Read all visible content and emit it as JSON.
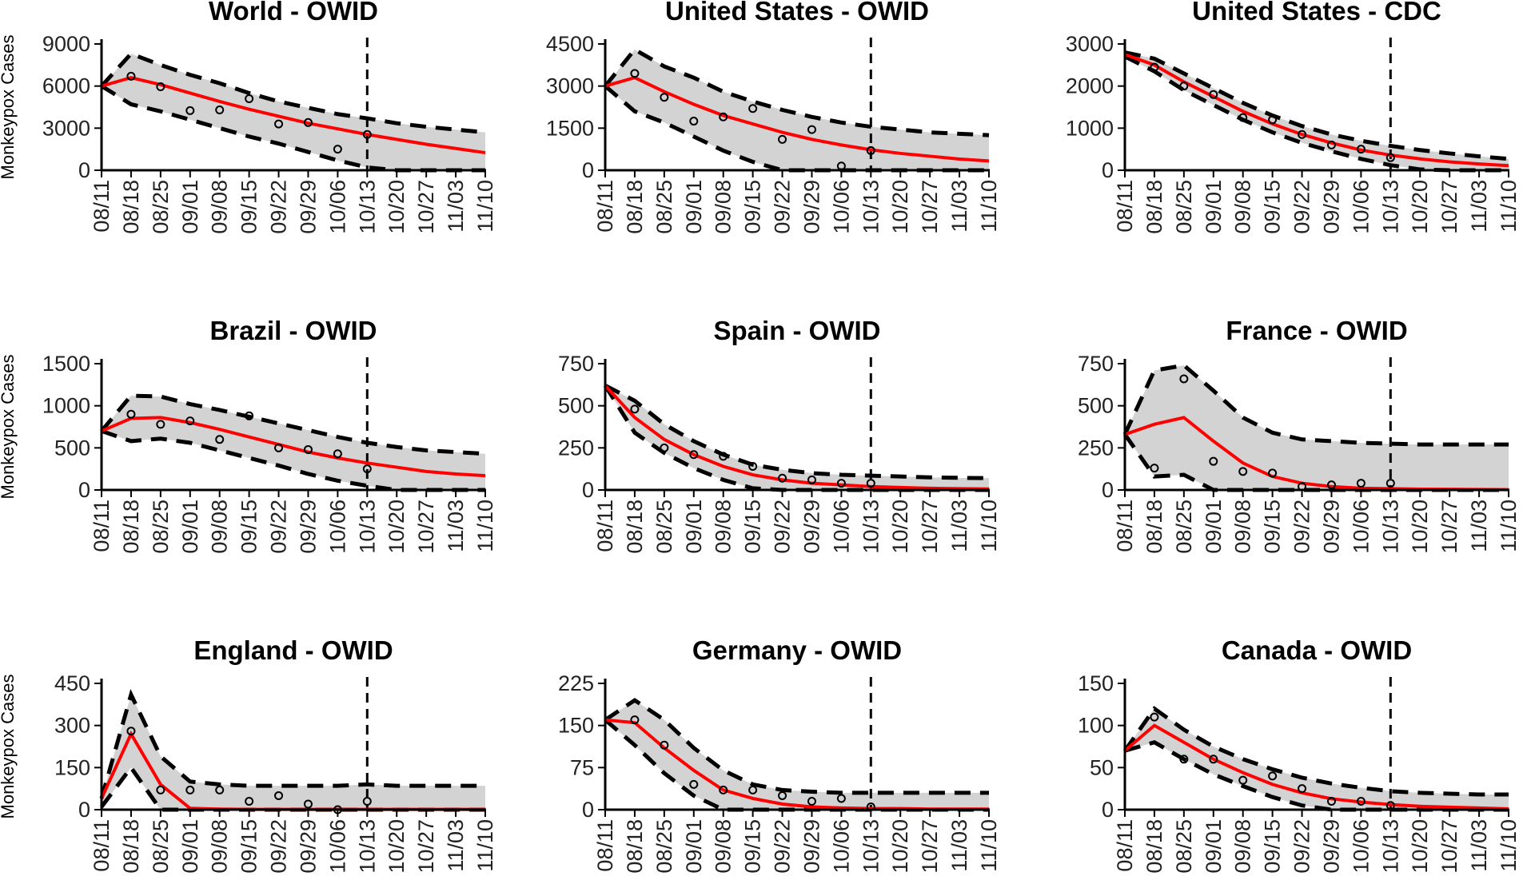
{
  "colors": {
    "band": "#d3d3d3",
    "mean": "#ff0000",
    "bounds": "#000000",
    "marker": "#000000",
    "axis": "#000000"
  },
  "chart_data": [
    {
      "type": "line",
      "title": "World - OWID",
      "xlabel": "",
      "ylabel": "Monkeypox Cases",
      "categories": [
        "08/11",
        "08/18",
        "08/25",
        "09/01",
        "09/08",
        "09/15",
        "09/22",
        "09/29",
        "10/06",
        "10/13",
        "10/20",
        "10/27",
        "11/03",
        "11/10"
      ],
      "x": [
        0,
        1,
        2,
        3,
        4,
        5,
        6,
        7,
        8,
        9,
        10,
        11,
        12,
        13
      ],
      "ylim": [
        0,
        9000
      ],
      "yticks": [
        0,
        3000,
        6000,
        9000
      ],
      "forecast_start": "10/13",
      "series": [
        {
          "name": "model mean",
          "values": [
            6000,
            6600,
            6100,
            5500,
            4900,
            4350,
            3850,
            3350,
            2950,
            2550,
            2200,
            1850,
            1550,
            1250
          ]
        },
        {
          "name": "upper bound",
          "values": [
            6000,
            8300,
            7500,
            6800,
            6200,
            5500,
            4900,
            4450,
            4000,
            3700,
            3350,
            3100,
            2900,
            2700
          ]
        },
        {
          "name": "lower bound",
          "values": [
            6000,
            4700,
            4200,
            3600,
            3000,
            2400,
            1900,
            1300,
            700,
            200,
            0,
            0,
            0,
            0
          ]
        },
        {
          "name": "observed",
          "x": [
            1,
            2,
            3,
            4,
            5,
            6,
            7,
            8,
            9
          ],
          "values": [
            6700,
            5950,
            4250,
            4300,
            5100,
            3300,
            3400,
            1500,
            2550
          ]
        }
      ]
    },
    {
      "type": "line",
      "title": "United States - OWID",
      "xlabel": "",
      "ylabel": "",
      "categories": [
        "08/11",
        "08/18",
        "08/25",
        "09/01",
        "09/08",
        "09/15",
        "09/22",
        "09/29",
        "10/06",
        "10/13",
        "10/20",
        "10/27",
        "11/03",
        "11/10"
      ],
      "x": [
        0,
        1,
        2,
        3,
        4,
        5,
        6,
        7,
        8,
        9,
        10,
        11,
        12,
        13
      ],
      "ylim": [
        0,
        4500
      ],
      "yticks": [
        0,
        1500,
        3000,
        4500
      ],
      "forecast_start": "10/13",
      "series": [
        {
          "name": "model mean",
          "values": [
            3000,
            3300,
            2800,
            2350,
            1950,
            1650,
            1350,
            1100,
            900,
            730,
            600,
            500,
            400,
            330
          ]
        },
        {
          "name": "upper bound",
          "values": [
            3000,
            4300,
            3700,
            3300,
            2800,
            2450,
            2150,
            1900,
            1700,
            1550,
            1450,
            1350,
            1300,
            1250
          ]
        },
        {
          "name": "lower bound",
          "values": [
            3000,
            2100,
            1700,
            1200,
            700,
            300,
            0,
            0,
            0,
            0,
            0,
            0,
            0,
            0
          ]
        },
        {
          "name": "observed",
          "x": [
            1,
            2,
            3,
            4,
            5,
            6,
            7,
            8,
            9
          ],
          "values": [
            3450,
            2600,
            1750,
            1900,
            2200,
            1100,
            1450,
            150,
            700
          ]
        }
      ]
    },
    {
      "type": "line",
      "title": "United States - CDC",
      "xlabel": "",
      "ylabel": "",
      "categories": [
        "08/11",
        "08/18",
        "08/25",
        "09/01",
        "09/08",
        "09/15",
        "09/22",
        "09/29",
        "10/06",
        "10/13",
        "10/20",
        "10/27",
        "11/03",
        "11/10"
      ],
      "x": [
        0,
        1,
        2,
        3,
        4,
        5,
        6,
        7,
        8,
        9,
        10,
        11,
        12,
        13
      ],
      "ylim": [
        0,
        3000
      ],
      "yticks": [
        0,
        1000,
        2000,
        3000
      ],
      "forecast_start": "10/13",
      "series": [
        {
          "name": "model mean",
          "values": [
            2750,
            2500,
            2100,
            1750,
            1400,
            1100,
            850,
            650,
            480,
            360,
            270,
            200,
            150,
            110
          ]
        },
        {
          "name": "upper bound",
          "values": [
            2800,
            2650,
            2300,
            1950,
            1600,
            1300,
            1050,
            850,
            700,
            580,
            480,
            400,
            330,
            270
          ]
        },
        {
          "name": "lower bound",
          "values": [
            2700,
            2350,
            1900,
            1550,
            1200,
            900,
            650,
            450,
            270,
            120,
            20,
            0,
            0,
            0
          ]
        },
        {
          "name": "observed",
          "x": [
            1,
            2,
            3,
            4,
            5,
            6,
            7,
            8,
            9
          ],
          "values": [
            2450,
            2000,
            1800,
            1250,
            1200,
            850,
            600,
            500,
            300
          ]
        }
      ]
    },
    {
      "type": "line",
      "title": "Brazil - OWID",
      "xlabel": "",
      "ylabel": "Monkeypox Cases",
      "categories": [
        "08/11",
        "08/18",
        "08/25",
        "09/01",
        "09/08",
        "09/15",
        "09/22",
        "09/29",
        "10/06",
        "10/13",
        "10/20",
        "10/27",
        "11/03",
        "11/10"
      ],
      "x": [
        0,
        1,
        2,
        3,
        4,
        5,
        6,
        7,
        8,
        9,
        10,
        11,
        12,
        13
      ],
      "ylim": [
        0,
        1500
      ],
      "yticks": [
        0,
        500,
        1000,
        1500
      ],
      "forecast_start": "10/13",
      "series": [
        {
          "name": "model mean",
          "values": [
            700,
            850,
            860,
            800,
            720,
            630,
            540,
            450,
            380,
            320,
            270,
            220,
            190,
            170
          ]
        },
        {
          "name": "upper bound",
          "values": [
            700,
            1120,
            1110,
            1020,
            950,
            870,
            790,
            710,
            630,
            560,
            510,
            470,
            450,
            430
          ]
        },
        {
          "name": "lower bound",
          "values": [
            700,
            580,
            610,
            560,
            470,
            380,
            290,
            190,
            110,
            50,
            0,
            0,
            0,
            0
          ]
        },
        {
          "name": "observed",
          "x": [
            1,
            2,
            3,
            4,
            5,
            6,
            7,
            8,
            9
          ],
          "values": [
            900,
            780,
            820,
            600,
            880,
            500,
            480,
            430,
            250
          ]
        }
      ]
    },
    {
      "type": "line",
      "title": "Spain - OWID",
      "xlabel": "",
      "ylabel": "",
      "categories": [
        "08/11",
        "08/18",
        "08/25",
        "09/01",
        "09/08",
        "09/15",
        "09/22",
        "09/29",
        "10/06",
        "10/13",
        "10/20",
        "10/27",
        "11/03",
        "11/10"
      ],
      "x": [
        0,
        1,
        2,
        3,
        4,
        5,
        6,
        7,
        8,
        9,
        10,
        11,
        12,
        13
      ],
      "ylim": [
        0,
        750
      ],
      "yticks": [
        0,
        250,
        500,
        750
      ],
      "forecast_start": "10/13",
      "series": [
        {
          "name": "model mean",
          "values": [
            620,
            430,
            300,
            210,
            140,
            90,
            60,
            40,
            30,
            20,
            15,
            10,
            8,
            6
          ]
        },
        {
          "name": "upper bound",
          "values": [
            620,
            530,
            390,
            290,
            210,
            150,
            120,
            100,
            90,
            85,
            80,
            75,
            72,
            70
          ]
        },
        {
          "name": "lower bound",
          "values": [
            620,
            340,
            220,
            130,
            60,
            10,
            0,
            0,
            0,
            0,
            0,
            0,
            0,
            0
          ]
        },
        {
          "name": "observed",
          "x": [
            1,
            2,
            3,
            4,
            5,
            6,
            7,
            8,
            9
          ],
          "values": [
            480,
            250,
            210,
            200,
            140,
            70,
            60,
            40,
            40
          ]
        }
      ]
    },
    {
      "type": "line",
      "title": "France - OWID",
      "xlabel": "",
      "ylabel": "",
      "categories": [
        "08/11",
        "08/18",
        "08/25",
        "09/01",
        "09/08",
        "09/15",
        "09/22",
        "09/29",
        "10/06",
        "10/13",
        "10/20",
        "10/27",
        "11/03",
        "11/10"
      ],
      "x": [
        0,
        1,
        2,
        3,
        4,
        5,
        6,
        7,
        8,
        9,
        10,
        11,
        12,
        13
      ],
      "ylim": [
        0,
        750
      ],
      "yticks": [
        0,
        250,
        500,
        750
      ],
      "forecast_start": "10/13",
      "series": [
        {
          "name": "model mean",
          "values": [
            330,
            390,
            430,
            290,
            160,
            80,
            40,
            20,
            10,
            8,
            5,
            4,
            3,
            2
          ]
        },
        {
          "name": "upper bound",
          "values": [
            330,
            710,
            740,
            590,
            430,
            340,
            300,
            290,
            280,
            275,
            270,
            270,
            270,
            270
          ]
        },
        {
          "name": "lower bound",
          "values": [
            330,
            80,
            90,
            0,
            0,
            0,
            0,
            0,
            0,
            0,
            0,
            0,
            0,
            0
          ]
        },
        {
          "name": "observed",
          "x": [
            1,
            2,
            3,
            4,
            5,
            6,
            7,
            8,
            9
          ],
          "values": [
            130,
            660,
            170,
            110,
            100,
            20,
            30,
            40,
            40
          ]
        }
      ]
    },
    {
      "type": "line",
      "title": "England - OWID",
      "xlabel": "",
      "ylabel": "Monkeypox Cases",
      "categories": [
        "08/11",
        "08/18",
        "08/25",
        "09/01",
        "09/08",
        "09/15",
        "09/22",
        "09/29",
        "10/06",
        "10/13",
        "10/20",
        "10/27",
        "11/03",
        "11/10"
      ],
      "x": [
        0,
        1,
        2,
        3,
        4,
        5,
        6,
        7,
        8,
        9,
        10,
        11,
        12,
        13
      ],
      "ylim": [
        0,
        450
      ],
      "yticks": [
        0,
        150,
        300,
        450
      ],
      "forecast_start": "10/13",
      "series": [
        {
          "name": "model mean",
          "values": [
            40,
            270,
            90,
            5,
            2,
            1,
            1,
            1,
            1,
            1,
            1,
            1,
            1,
            1
          ]
        },
        {
          "name": "upper bound",
          "values": [
            40,
            410,
            190,
            100,
            90,
            85,
            85,
            85,
            85,
            90,
            85,
            85,
            85,
            85
          ]
        },
        {
          "name": "lower bound",
          "values": [
            10,
            150,
            0,
            0,
            0,
            0,
            0,
            0,
            0,
            0,
            0,
            0,
            0,
            0
          ]
        },
        {
          "name": "observed",
          "x": [
            1,
            2,
            3,
            4,
            5,
            6,
            7,
            8,
            9
          ],
          "values": [
            280,
            70,
            70,
            70,
            30,
            50,
            20,
            0,
            30
          ]
        }
      ]
    },
    {
      "type": "line",
      "title": "Germany - OWID",
      "xlabel": "",
      "ylabel": "",
      "categories": [
        "08/11",
        "08/18",
        "08/25",
        "09/01",
        "09/08",
        "09/15",
        "09/22",
        "09/29",
        "10/06",
        "10/13",
        "10/20",
        "10/27",
        "11/03",
        "11/10"
      ],
      "x": [
        0,
        1,
        2,
        3,
        4,
        5,
        6,
        7,
        8,
        9,
        10,
        11,
        12,
        13
      ],
      "ylim": [
        0,
        225
      ],
      "yticks": [
        0,
        75,
        150,
        225
      ],
      "forecast_start": "10/13",
      "series": [
        {
          "name": "model mean",
          "values": [
            160,
            155,
            110,
            70,
            35,
            20,
            10,
            5,
            3,
            2,
            2,
            1,
            1,
            1
          ]
        },
        {
          "name": "upper bound",
          "values": [
            160,
            195,
            160,
            110,
            70,
            45,
            35,
            32,
            30,
            30,
            30,
            30,
            30,
            30
          ]
        },
        {
          "name": "lower bound",
          "values": [
            160,
            115,
            65,
            25,
            0,
            0,
            0,
            0,
            0,
            0,
            0,
            0,
            0,
            0
          ]
        },
        {
          "name": "observed",
          "x": [
            1,
            2,
            3,
            4,
            5,
            6,
            7,
            8,
            9
          ],
          "values": [
            160,
            115,
            45,
            35,
            35,
            25,
            15,
            20,
            5
          ]
        }
      ]
    },
    {
      "type": "line",
      "title": "Canada - OWID",
      "xlabel": "",
      "ylabel": "",
      "categories": [
        "08/11",
        "08/18",
        "08/25",
        "09/01",
        "09/08",
        "09/15",
        "09/22",
        "09/29",
        "10/06",
        "10/13",
        "10/20",
        "10/27",
        "11/03",
        "11/10"
      ],
      "x": [
        0,
        1,
        2,
        3,
        4,
        5,
        6,
        7,
        8,
        9,
        10,
        11,
        12,
        13
      ],
      "ylim": [
        0,
        150
      ],
      "yticks": [
        0,
        50,
        100,
        150
      ],
      "forecast_start": "10/13",
      "series": [
        {
          "name": "model mean",
          "values": [
            70,
            100,
            80,
            60,
            44,
            30,
            20,
            13,
            9,
            6,
            4,
            3,
            2,
            1
          ]
        },
        {
          "name": "upper bound",
          "values": [
            70,
            120,
            95,
            75,
            60,
            48,
            38,
            31,
            26,
            22,
            20,
            19,
            18,
            18
          ]
        },
        {
          "name": "lower bound",
          "values": [
            70,
            80,
            60,
            42,
            28,
            15,
            5,
            0,
            0,
            0,
            0,
            0,
            0,
            0
          ]
        },
        {
          "name": "observed",
          "x": [
            1,
            2,
            3,
            4,
            5,
            6,
            7,
            8,
            9
          ],
          "values": [
            110,
            60,
            60,
            35,
            40,
            25,
            10,
            10,
            5
          ]
        }
      ]
    }
  ]
}
